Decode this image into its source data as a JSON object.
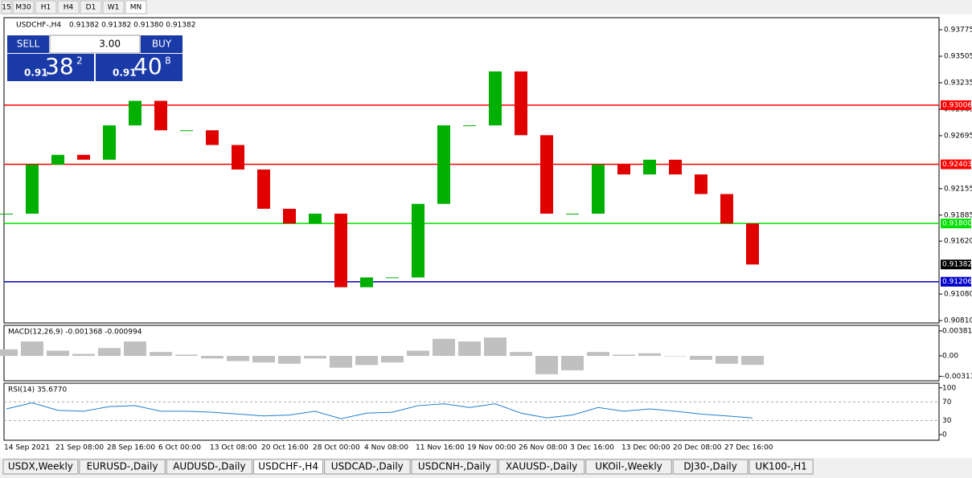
{
  "timeframes": [
    "15",
    "M30",
    "H1",
    "H4",
    "D1",
    "W1",
    "MN"
  ],
  "header": {
    "symbol": "USDCHF-,H4",
    "quote": "0.91382 0.91382 0.91380 0.91382"
  },
  "trade_panel": {
    "sell": "SELL",
    "buy": "BUY",
    "lot": "3.00",
    "sell_price": {
      "prefix": "0.91",
      "big": "38",
      "small": "2"
    },
    "buy_price": {
      "prefix": "0.91",
      "big": "40",
      "small": "8"
    }
  },
  "chart_data": [
    {
      "type": "candle",
      "name": "price",
      "categories": [
        "14 Sep 2021",
        null,
        "21 Sep 08:00",
        null,
        "28 Sep 16:00",
        null,
        "6 Oct 00:00",
        null,
        "13 Oct 08:00",
        null,
        "20 Oct 16:00",
        null,
        "28 Oct 00:00",
        null,
        "4 Nov 08:00",
        null,
        "11 Nov 16:00",
        null,
        "19 Nov 00:00",
        null,
        "26 Nov 08:00",
        null,
        "3 Dec 16:00",
        null,
        "13 Dec 00:00",
        null,
        "20 Dec 08:00",
        null,
        "27 Dec 16:00",
        null
      ],
      "values": [
        0.919,
        0.924,
        0.925,
        0.9245,
        0.928,
        0.9305,
        0.9275,
        0.9275,
        0.926,
        0.9235,
        0.9195,
        0.918,
        0.919,
        0.9115,
        0.9125,
        0.9125,
        0.92,
        0.928,
        0.928,
        0.9335,
        0.927,
        0.919,
        0.919,
        0.924,
        0.923,
        0.9245,
        0.923,
        0.921,
        0.918,
        0.91382
      ],
      "up_color": "#00b000",
      "down_color": "#e00000",
      "ylim": [
        0.90786,
        0.93898
      ],
      "yticks": [
        0.93775,
        0.93505,
        0.93235,
        0.92965,
        0.92695,
        0.92155,
        0.91885,
        {
          "value": 0.9162,
          "label": "0.91620"
        },
        {
          "value": 0.9108,
          "label": "0.91080"
        },
        {
          "value": 0.9081,
          "label": "0.90810"
        }
      ],
      "levels": [
        {
          "value": 0.93006,
          "color": "#ff0000"
        },
        {
          "value": 0.92403,
          "color": "#ff0000"
        },
        {
          "value": 0.918,
          "label": "0.91800",
          "color": "#00e000"
        },
        {
          "value": 0.91206,
          "color": "#0000cc"
        }
      ],
      "last": 0.91382
    },
    {
      "type": "histogram",
      "title": "MACD(12,26,9) -0.001368 -0.000994",
      "values": [
        0.001,
        0.0022,
        0.0008,
        0.0003,
        0.0012,
        0.0022,
        0.0006,
        0.0002,
        -0.0004,
        -0.0008,
        -0.001,
        -0.0012,
        -0.0004,
        -0.0018,
        -0.0014,
        -0.001,
        0.0008,
        0.0026,
        0.0022,
        0.0028,
        0.0006,
        -0.0028,
        -0.0022,
        0.0006,
        0.0002,
        0.0004,
        0,
        -0.0006,
        -0.0012,
        -0.001368
      ],
      "color": "#c0c0c0",
      "ylim": [
        -0.0038,
        0.00466
      ],
      "yticks": [
        0.003811,
        {
          "value": 0,
          "label": "0.00"
        },
        -0.003111
      ]
    },
    {
      "type": "line",
      "title": "RSI(14) 35.6770",
      "values": [
        55,
        68,
        52,
        50,
        60,
        62,
        50,
        50,
        48,
        44,
        40,
        42,
        50,
        34,
        46,
        48,
        62,
        66,
        58,
        66,
        46,
        36,
        42,
        58,
        50,
        55,
        50,
        44,
        40,
        35.677
      ],
      "color": "#1e7fd0",
      "ylim": [
        -12,
        110
      ],
      "yticks": [
        100,
        70,
        30,
        0
      ]
    }
  ],
  "tabs": [
    "USDX,Weekly",
    "EURUSD-,Daily",
    "AUDUSD-,Daily",
    "USDCHF-,H4",
    "USDCAD-,Daily",
    "USDCNH-,Daily",
    "XAUUSD-,Daily",
    "UKOil-,Weekly",
    "DJ30-,Daily",
    "UK100-,H1"
  ],
  "active_tab": 3
}
